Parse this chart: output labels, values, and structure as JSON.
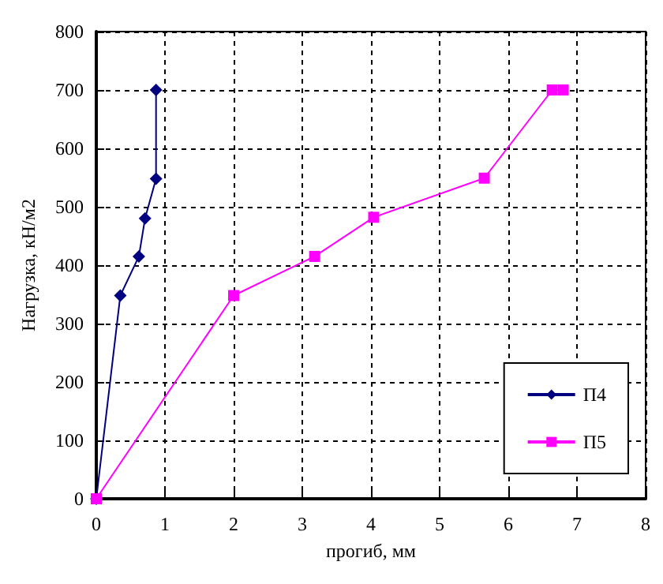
{
  "chart_data": {
    "type": "line",
    "xlabel": "прогиб, мм",
    "ylabel": "Нагрузка, кН/м2",
    "xlim": [
      0,
      8
    ],
    "xticks": [
      0,
      1,
      2,
      3,
      4,
      5,
      6,
      7,
      8
    ],
    "ylim": [
      0,
      800
    ],
    "yticks": [
      0,
      100,
      200,
      300,
      400,
      500,
      600,
      700,
      800
    ],
    "grid": true,
    "legend": "bottom right",
    "line_style": "solid",
    "series": [
      {
        "name": "П4",
        "color": "#000080",
        "marker": "diamond",
        "x": [
          0,
          0.35,
          0.62,
          0.71,
          0.87,
          0.87
        ],
        "values": [
          0,
          348,
          415,
          480,
          548,
          700
        ]
      },
      {
        "name": "П5",
        "color": "#ff00ff",
        "marker": "square",
        "x": [
          0,
          2,
          3.18,
          4.04,
          5.65,
          6.64,
          6.8
        ],
        "values": [
          0,
          348,
          415,
          482,
          549,
          700,
          700
        ]
      }
    ]
  }
}
